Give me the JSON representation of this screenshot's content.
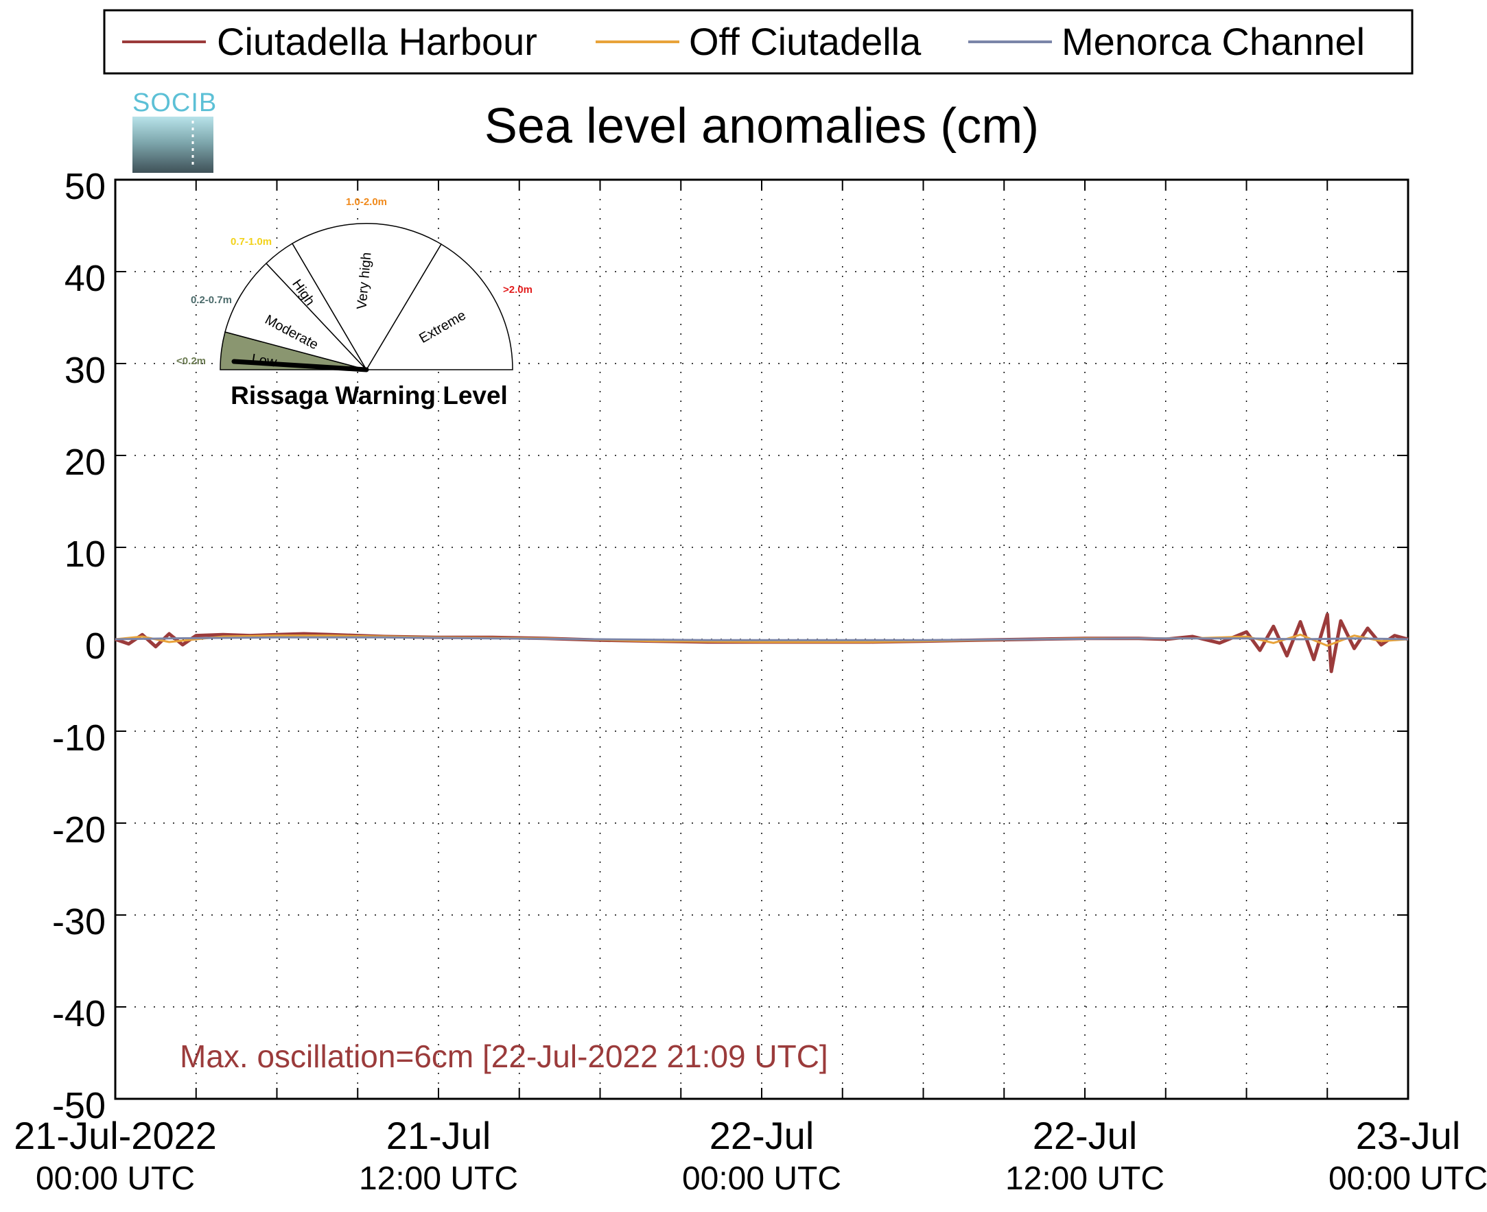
{
  "logo": {
    "text": "SOCIB"
  },
  "chart_data": {
    "type": "line",
    "title": "Sea level anomalies (cm)",
    "xlabel": "",
    "ylabel": "",
    "ylim": [
      -50,
      50
    ],
    "yticks": [
      50,
      40,
      30,
      20,
      10,
      0,
      -10,
      -20,
      -30,
      -40,
      -50
    ],
    "xlim": [
      "2022-07-21 00:00",
      "2022-07-23 00:00"
    ],
    "xticks": [
      {
        "at": "2022-07-21 00:00",
        "line1": "21-Jul-2022",
        "line2": "00:00 UTC"
      },
      {
        "at": "2022-07-21 12:00",
        "line1": "21-Jul",
        "line2": "12:00 UTC"
      },
      {
        "at": "2022-07-22 00:00",
        "line1": "22-Jul",
        "line2": "00:00 UTC"
      },
      {
        "at": "2022-07-22 12:00",
        "line1": "22-Jul",
        "line2": "12:00 UTC"
      },
      {
        "at": "2022-07-23 00:00",
        "line1": "23-Jul",
        "line2": "00:00 UTC"
      }
    ],
    "grid": true,
    "legend_position": "top",
    "series": [
      {
        "name": "Ciutadella Harbour",
        "color": "#9b3b3b",
        "points": [
          [
            "2022-07-21 00:00",
            0.0
          ],
          [
            "2022-07-21 00:30",
            -0.5
          ],
          [
            "2022-07-21 01:00",
            0.5
          ],
          [
            "2022-07-21 01:30",
            -0.8
          ],
          [
            "2022-07-21 02:00",
            0.6
          ],
          [
            "2022-07-21 02:30",
            -0.6
          ],
          [
            "2022-07-21 03:00",
            0.4
          ],
          [
            "2022-07-21 04:00",
            0.5
          ],
          [
            "2022-07-21 05:00",
            0.4
          ],
          [
            "2022-07-21 06:00",
            0.5
          ],
          [
            "2022-07-21 07:00",
            0.6
          ],
          [
            "2022-07-21 08:00",
            0.5
          ],
          [
            "2022-07-21 09:00",
            0.4
          ],
          [
            "2022-07-21 10:00",
            0.3
          ],
          [
            "2022-07-21 12:00",
            0.2
          ],
          [
            "2022-07-21 14:00",
            0.2
          ],
          [
            "2022-07-21 16:00",
            0.1
          ],
          [
            "2022-07-21 18:00",
            -0.1
          ],
          [
            "2022-07-21 20:00",
            -0.2
          ],
          [
            "2022-07-21 22:00",
            -0.3
          ],
          [
            "2022-07-22 00:00",
            -0.3
          ],
          [
            "2022-07-22 02:00",
            -0.3
          ],
          [
            "2022-07-22 04:00",
            -0.3
          ],
          [
            "2022-07-22 06:00",
            -0.2
          ],
          [
            "2022-07-22 08:00",
            -0.1
          ],
          [
            "2022-07-22 10:00",
            0.0
          ],
          [
            "2022-07-22 12:00",
            0.1
          ],
          [
            "2022-07-22 14:00",
            0.1
          ],
          [
            "2022-07-22 15:00",
            0.0
          ],
          [
            "2022-07-22 16:00",
            0.3
          ],
          [
            "2022-07-22 17:00",
            -0.4
          ],
          [
            "2022-07-22 18:00",
            0.8
          ],
          [
            "2022-07-22 18:30",
            -1.2
          ],
          [
            "2022-07-22 19:00",
            1.4
          ],
          [
            "2022-07-22 19:30",
            -1.8
          ],
          [
            "2022-07-22 20:00",
            1.9
          ],
          [
            "2022-07-22 20:30",
            -2.2
          ],
          [
            "2022-07-22 21:00",
            2.7
          ],
          [
            "2022-07-22 21:09",
            -3.5
          ],
          [
            "2022-07-22 21:30",
            2.0
          ],
          [
            "2022-07-22 22:00",
            -1.0
          ],
          [
            "2022-07-22 22:30",
            1.2
          ],
          [
            "2022-07-22 23:00",
            -0.6
          ],
          [
            "2022-07-22 23:30",
            0.4
          ],
          [
            "2022-07-23 00:00",
            0.0
          ]
        ]
      },
      {
        "name": "Off Ciutadella",
        "color": "#e8a33a",
        "points": [
          [
            "2022-07-21 00:00",
            0.0
          ],
          [
            "2022-07-21 01:00",
            0.3
          ],
          [
            "2022-07-21 02:00",
            -0.3
          ],
          [
            "2022-07-21 04:00",
            0.3
          ],
          [
            "2022-07-21 06:00",
            0.4
          ],
          [
            "2022-07-21 08:00",
            0.4
          ],
          [
            "2022-07-21 10:00",
            0.3
          ],
          [
            "2022-07-21 12:00",
            0.2
          ],
          [
            "2022-07-21 16:00",
            0.1
          ],
          [
            "2022-07-21 20:00",
            -0.2
          ],
          [
            "2022-07-22 00:00",
            -0.3
          ],
          [
            "2022-07-22 04:00",
            -0.3
          ],
          [
            "2022-07-22 08:00",
            -0.1
          ],
          [
            "2022-07-22 12:00",
            0.1
          ],
          [
            "2022-07-22 16:00",
            0.1
          ],
          [
            "2022-07-22 18:00",
            0.3
          ],
          [
            "2022-07-22 19:00",
            -0.4
          ],
          [
            "2022-07-22 20:00",
            0.5
          ],
          [
            "2022-07-22 21:00",
            -0.7
          ],
          [
            "2022-07-22 22:00",
            0.4
          ],
          [
            "2022-07-22 23:00",
            -0.2
          ],
          [
            "2022-07-23 00:00",
            0.0
          ]
        ]
      },
      {
        "name": "Menorca Channel",
        "color": "#7b85a8",
        "points": [
          [
            "2022-07-21 00:00",
            0.0
          ],
          [
            "2022-07-21 02:00",
            0.1
          ],
          [
            "2022-07-21 06:00",
            0.2
          ],
          [
            "2022-07-21 10:00",
            0.2
          ],
          [
            "2022-07-21 14:00",
            0.1
          ],
          [
            "2022-07-21 18:00",
            0.0
          ],
          [
            "2022-07-21 22:00",
            -0.1
          ],
          [
            "2022-07-22 02:00",
            -0.1
          ],
          [
            "2022-07-22 06:00",
            -0.1
          ],
          [
            "2022-07-22 10:00",
            0.0
          ],
          [
            "2022-07-22 14:00",
            0.1
          ],
          [
            "2022-07-22 18:00",
            0.1
          ],
          [
            "2022-07-22 20:00",
            0.0
          ],
          [
            "2022-07-22 22:00",
            0.1
          ],
          [
            "2022-07-23 00:00",
            0.0
          ]
        ]
      }
    ],
    "annotation": {
      "text": "Max. oscillation=6cm [22-Jul-2022 21:09 UTC]",
      "color": "#9b3b3b"
    }
  },
  "gauge": {
    "title": "Rissaga Warning Level",
    "value_m": 0.06,
    "levels": [
      {
        "label": "Low",
        "range": "<0.2m",
        "range_color": "#6a7a50",
        "fill": "#8a9670",
        "filled": true
      },
      {
        "label": "Moderate",
        "range": "0.2-0.7m",
        "range_color": "#4a6a6a",
        "fill": "#ffffff",
        "filled": false
      },
      {
        "label": "High",
        "range": "0.7-1.0m",
        "range_color": "#f2d21b",
        "fill": "#ffffff",
        "filled": false
      },
      {
        "label": "Very high",
        "range": "1.0-2.0m",
        "range_color": "#f08a1c",
        "fill": "#ffffff",
        "filled": false
      },
      {
        "label": "Extreme",
        "range": ">2.0m",
        "range_color": "#e21c1c",
        "fill": "#ffffff",
        "filled": false
      }
    ]
  }
}
